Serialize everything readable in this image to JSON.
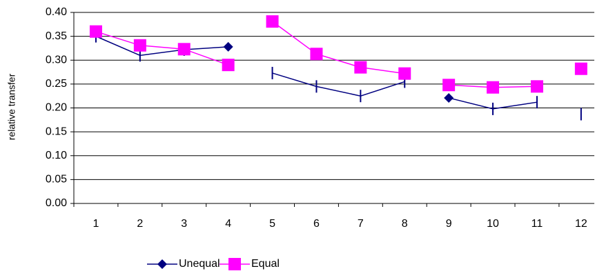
{
  "chart_data": {
    "type": "line",
    "y_label": "relative transfer",
    "categories": [
      "1",
      "2",
      "3",
      "4",
      "5",
      "6",
      "7",
      "8",
      "9",
      "10",
      "11",
      "12"
    ],
    "series": [
      {
        "name": "Unequal",
        "color": "#000080",
        "values": [
          0.35,
          0.31,
          0.322,
          0.328,
          0.273,
          0.245,
          0.225,
          0.255,
          0.221,
          0.198,
          0.212,
          0.187
        ]
      },
      {
        "name": "Equal",
        "color": "#ff00ff",
        "values": [
          0.36,
          0.331,
          0.323,
          0.29,
          0.381,
          0.313,
          0.285,
          0.272,
          0.248,
          0.243,
          0.245,
          0.282
        ]
      }
    ],
    "ylim": [
      0,
      0.4
    ],
    "yticks": [
      {
        "value": 0,
        "label": "0.00"
      },
      {
        "value": 0.05,
        "label": "0.05"
      },
      {
        "value": 0.1,
        "label": "0.10"
      },
      {
        "value": 0.15,
        "label": "0.15"
      },
      {
        "value": 0.2,
        "label": "0.20"
      },
      {
        "value": 0.25,
        "label": "0.25"
      },
      {
        "value": 0.3,
        "label": "0.30"
      },
      {
        "value": 0.35,
        "label": "0.35"
      },
      {
        "value": 0.4,
        "label": "0.40"
      }
    ],
    "grid": true
  }
}
